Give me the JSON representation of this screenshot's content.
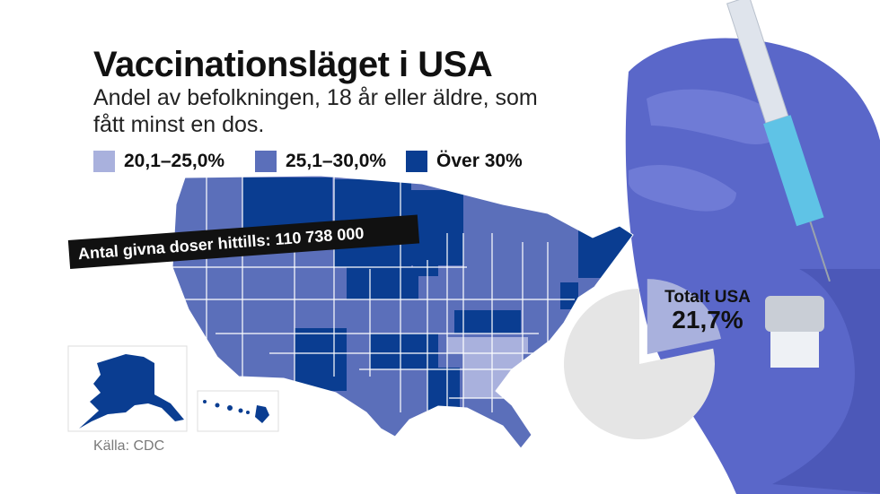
{
  "title": "Vaccinationsläget i USA",
  "subtitle": "Andel av befolkningen, 18 år eller äldre, som fått minst en dos.",
  "legend": [
    {
      "label": "20,1–25,0%",
      "color": "#a9b1dd"
    },
    {
      "label": "25,1–30,0%",
      "color": "#5b6fba"
    },
    {
      "label": "Över 30%",
      "color": "#0a3d91"
    }
  ],
  "doses_banner": "Antal givna doser hittills: 110 738 000",
  "source": "Källa: CDC",
  "total": {
    "label": "Totalt USA",
    "value": "21,7%",
    "fraction": 0.217
  },
  "colors": {
    "light": "#a9b1dd",
    "mid": "#5b6fba",
    "dark": "#0a3d91",
    "pie_rest": "#e5e5e5",
    "glove": "#5a67c9",
    "state_border": "#ffffff"
  }
}
